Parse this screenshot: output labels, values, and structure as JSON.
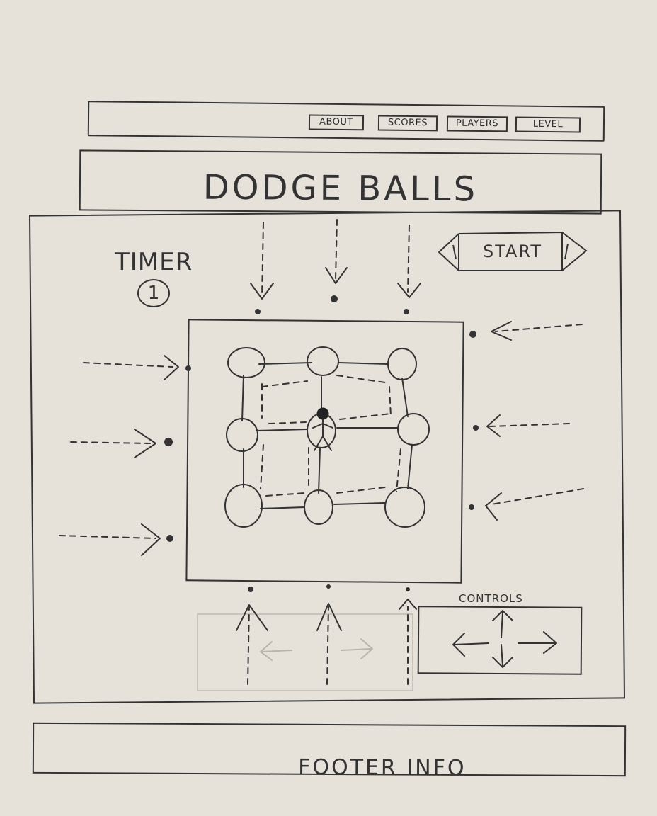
{
  "nav": {
    "items": [
      {
        "label": "ABOUT"
      },
      {
        "label": "SCORES"
      },
      {
        "label": "PLAYERS"
      },
      {
        "label": "LEVEL"
      }
    ]
  },
  "header": {
    "title": "DODGE BALLS"
  },
  "game": {
    "timer_label": "TIMER",
    "timer_value": "1",
    "start_label": "START",
    "controls_label": "CONTROLS"
  },
  "footer": {
    "text": "FOOTER INFO"
  },
  "icons": {
    "player": "stick-figure-icon",
    "ball": "ball-icon",
    "arrows": [
      "arrow-up-icon",
      "arrow-down-icon",
      "arrow-left-icon",
      "arrow-right-icon"
    ]
  }
}
